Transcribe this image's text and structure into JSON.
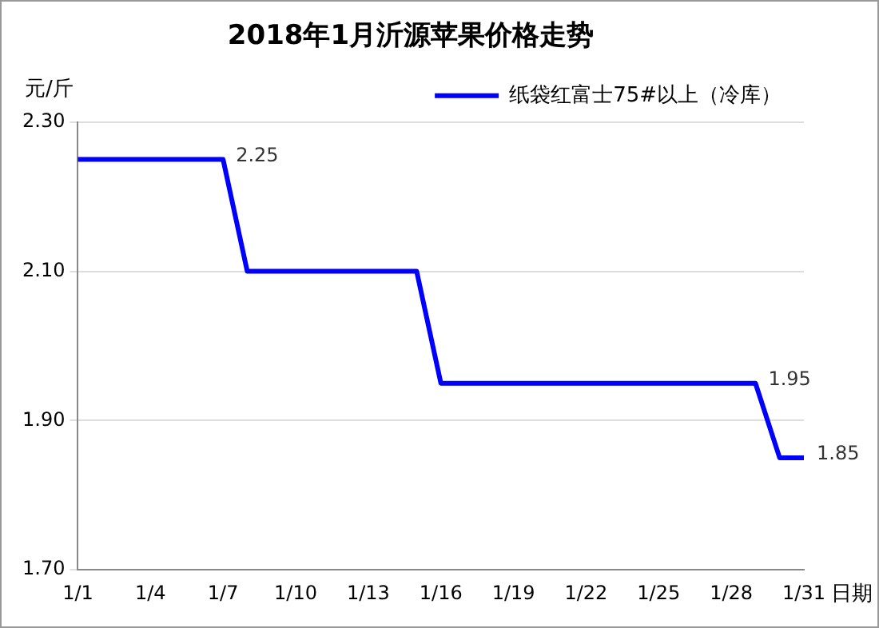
{
  "chart_data": {
    "type": "line",
    "title": "2018年1月沂源苹果价格走势",
    "ylabel": "元/斤",
    "xlabel": "日期",
    "categories": [
      "1/1",
      null,
      null,
      "1/4",
      null,
      null,
      "1/7",
      null,
      null,
      "1/10",
      null,
      null,
      "1/13",
      null,
      null,
      "1/16",
      null,
      null,
      "1/19",
      null,
      null,
      "1/22",
      null,
      null,
      "1/25",
      null,
      null,
      "1/28",
      null,
      null,
      "1/31"
    ],
    "series": [
      {
        "name": "纸袋红富士75#以上（冷库）",
        "color": "#0000ff",
        "values": [
          2.25,
          2.25,
          2.25,
          2.25,
          2.25,
          2.25,
          2.25,
          2.1,
          2.1,
          2.1,
          2.1,
          2.1,
          2.1,
          2.1,
          2.1,
          1.95,
          1.95,
          1.95,
          1.95,
          1.95,
          1.95,
          1.95,
          1.95,
          1.95,
          1.95,
          1.95,
          1.95,
          1.95,
          1.95,
          1.85,
          1.85
        ],
        "value_labels": [
          null,
          null,
          null,
          null,
          null,
          null,
          "2.25",
          null,
          null,
          null,
          null,
          null,
          null,
          null,
          null,
          null,
          null,
          null,
          null,
          null,
          null,
          null,
          null,
          null,
          null,
          null,
          null,
          null,
          "1.95",
          null,
          "1.85"
        ]
      }
    ],
    "ylim": [
      1.7,
      2.3
    ],
    "yticks": [
      {
        "value": 1.7,
        "label": "1.70"
      },
      {
        "value": 1.9,
        "label": "1.90"
      },
      {
        "value": 2.1,
        "label": "2.10"
      },
      {
        "value": 2.3,
        "label": "2.30"
      }
    ],
    "grid": "y",
    "legend": "top right",
    "marker": "none",
    "line_style": "solid"
  }
}
